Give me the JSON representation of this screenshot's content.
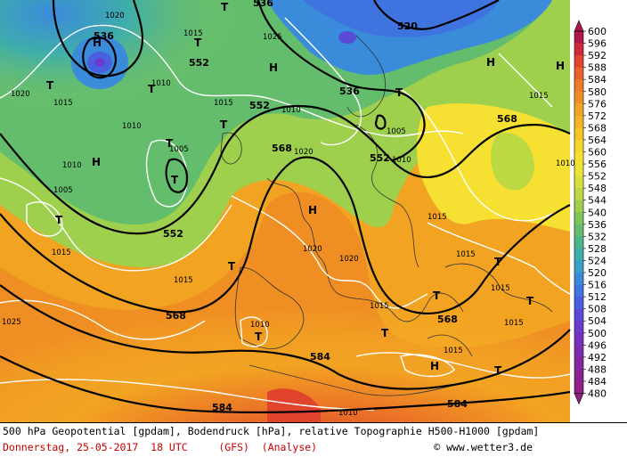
{
  "footer": {
    "line1": "500 hPa Geopotential [gpdam], Bodendruck [hPa], relative Topographie H500-H1000 [gpdam]",
    "line2": "Donnerstag, 25-05-2017  18 UTC     (GFS)  (Analyse)",
    "credit": "© www.wetter3.de"
  },
  "legend": {
    "ticks": [
      600,
      596,
      592,
      588,
      584,
      580,
      576,
      572,
      568,
      564,
      560,
      556,
      552,
      548,
      544,
      540,
      536,
      532,
      528,
      524,
      520,
      516,
      512,
      508,
      504,
      500,
      496,
      492,
      488,
      484,
      480
    ],
    "colors": [
      "#b0164a",
      "#cf2a3c",
      "#e0442c",
      "#e8612a",
      "#ec7a26",
      "#ef8f23",
      "#f2a322",
      "#f5b423",
      "#f6c526",
      "#f7d62b",
      "#f6e032",
      "#ece435",
      "#d6e03a",
      "#bcd843",
      "#9ed04d",
      "#7fc65a",
      "#63bd6d",
      "#4db58a",
      "#3fadab",
      "#3a9fc8",
      "#3a8bda",
      "#3f74e0",
      "#4a5fe0",
      "#5a4ad8",
      "#6a3bcc",
      "#7632be",
      "#7e2cae",
      "#84289f",
      "#8a2492",
      "#8e2086"
    ]
  },
  "map": {
    "contours_500hPa": [
      "536",
      "552",
      "552",
      "552",
      "568",
      "568",
      "552",
      "536",
      "568",
      "568",
      "584",
      "584",
      "584",
      "520",
      "536"
    ],
    "pressure_labels": [
      "1020",
      "1015",
      "1025",
      "1010",
      "1005",
      "1015",
      "1010",
      "1020",
      "1015",
      "1010",
      "1005",
      "1010",
      "1015",
      "1020",
      "1015",
      "1020",
      "1015",
      "1015",
      "1015",
      "1015",
      "1015",
      "1010",
      "1010",
      "1020",
      "1010",
      "1015",
      "1015",
      "1010",
      "1005",
      "1025"
    ],
    "pressure_centers": [
      "H",
      "T",
      "T",
      "T",
      "T",
      "T",
      "H",
      "H",
      "H",
      "T",
      "T",
      "T",
      "T",
      "T",
      "T",
      "T",
      "H",
      "H",
      "T",
      "H",
      "T",
      "T",
      "T"
    ]
  }
}
